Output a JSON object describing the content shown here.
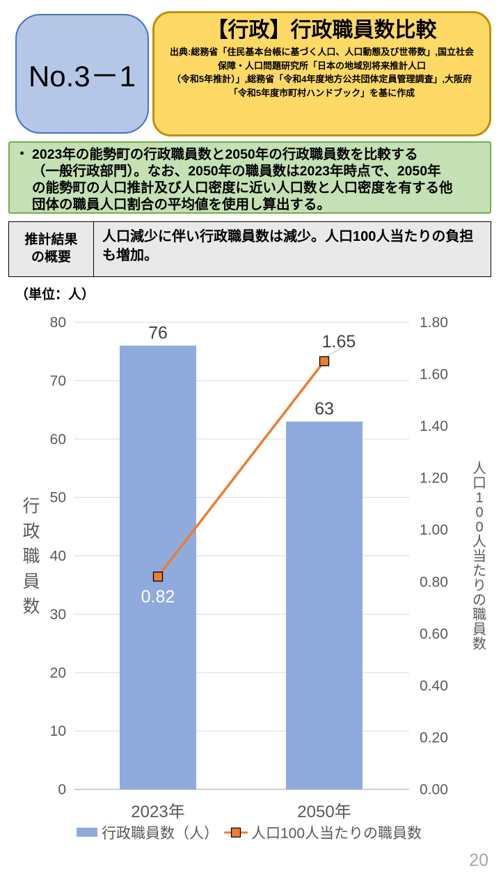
{
  "header": {
    "no_label": "No.3－1",
    "title": "【行政】行政職員数比較",
    "source": "出典:総務省「住民基本台帳に基づく人口、人口動態及び世帯数」,国立社会\n保障・人口問題研究所「日本の地域別将来推計人口\n（令和5年推計）」,総務省「令和4年度地方公共団体定員管理調査」,大阪府\n「令和5年度市町村ハンドブック」を基に作成"
  },
  "description": {
    "bullet": "・",
    "text": "2023年の能勢町の行政職員数と2050年の行政職員数を比較する\n（一般行政部門）。なお、2050年の職員数は2023年時点で、2050年\nの能勢町の人口推計及び人口密度に近い人口数と人口密度を有する他\n団体の職員人口割合の平均値を使用し算出する。"
  },
  "summary_table": {
    "header": "推計結果\nの概要",
    "body": "人口減少に伴い行政職員数は減少。人口100人当たりの負担も増加。"
  },
  "chart_data": {
    "type": "bar",
    "subtype": "dual-axis bar + line",
    "unit_label": "（単位：人）",
    "categories": [
      "2023年",
      "2050年"
    ],
    "series": [
      {
        "name": "行政職員数（人）",
        "kind": "bar",
        "axis": "left",
        "values": [
          76,
          63
        ],
        "labels": [
          "76",
          "63"
        ],
        "color": "#8FAADC"
      },
      {
        "name": "人口100人当たりの職員数",
        "kind": "line",
        "axis": "right",
        "values": [
          0.82,
          1.65
        ],
        "labels": [
          "0.82",
          "1.65"
        ],
        "color": "#ED7D31"
      }
    ],
    "left_axis": {
      "title": "行政職員数",
      "min": 0,
      "max": 80,
      "step": 10,
      "ticks": [
        "80",
        "70",
        "60",
        "50",
        "40",
        "30",
        "20",
        "10",
        "0"
      ]
    },
    "right_axis": {
      "title": "人口100人当たりの職員数",
      "min": 0,
      "max": 1.8,
      "step": 0.2,
      "ticks": [
        "1.80",
        "1.60",
        "1.40",
        "1.20",
        "1.00",
        "0.80",
        "0.60",
        "0.40",
        "0.20",
        "0.00"
      ]
    },
    "legend": [
      {
        "kind": "bar",
        "label": "行政職員数（人）",
        "color": "#8FAADC"
      },
      {
        "kind": "line",
        "label": "人口100人当たりの職員数",
        "color": "#ED7D31"
      }
    ],
    "grid": true,
    "legend_position": "bottom"
  },
  "colors": {
    "bar": "#8FAADC",
    "line": "#ED7D31",
    "grid": "#D9D9D9",
    "axis_text": "#595959",
    "data_label": "#404040",
    "no_box_bg": "#B4C7E7",
    "no_box_border": "#4472C4",
    "title_box_bg": "#FFD966",
    "title_box_border": "#BF9000",
    "desc_box_bg": "#C5E0B4",
    "desc_box_border": "#70AD47",
    "table_bg": "#E9E9E9"
  },
  "page": {
    "number": "20"
  }
}
